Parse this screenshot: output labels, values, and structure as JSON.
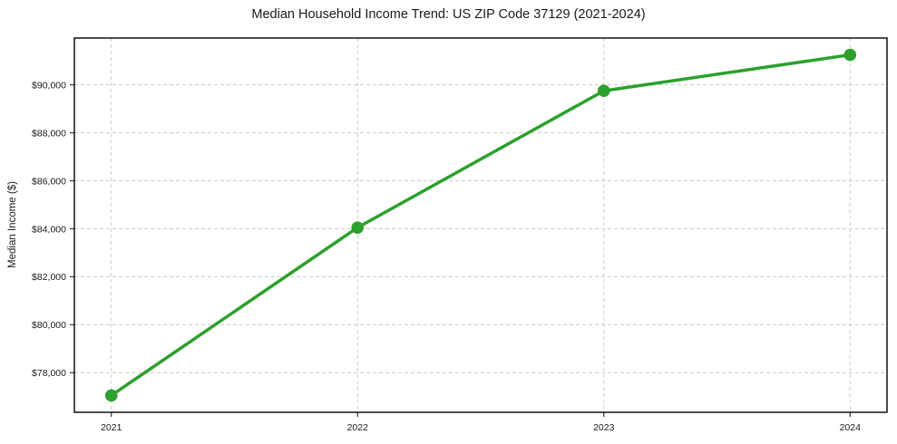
{
  "chart_data": {
    "type": "line",
    "title": "Median Household Income Trend: US ZIP Code 37129 (2021-2024)",
    "xlabel": "",
    "ylabel": "Median Income ($)",
    "categories": [
      "2021",
      "2022",
      "2023",
      "2024"
    ],
    "series": [
      {
        "name": "Median Household Income",
        "values": [
          77050,
          84050,
          89750,
          91250
        ]
      }
    ],
    "y_ticks": [
      78000,
      80000,
      82000,
      84000,
      86000,
      88000,
      90000
    ],
    "y_tick_labels": [
      "$78,000",
      "$80,000",
      "$82,000",
      "$84,000",
      "$86,000",
      "$88,000",
      "$90,000"
    ],
    "ylim": [
      76350,
      91950
    ],
    "grid": true,
    "grid_style": "dashed",
    "legend_position": "none",
    "colors": {
      "line": "#2ca02c",
      "marker": "#2ca02c",
      "grid": "#cccccc",
      "axis": "#000000",
      "tick": "#333333",
      "text": "#1a1a1a",
      "background": "#ffffff"
    }
  }
}
